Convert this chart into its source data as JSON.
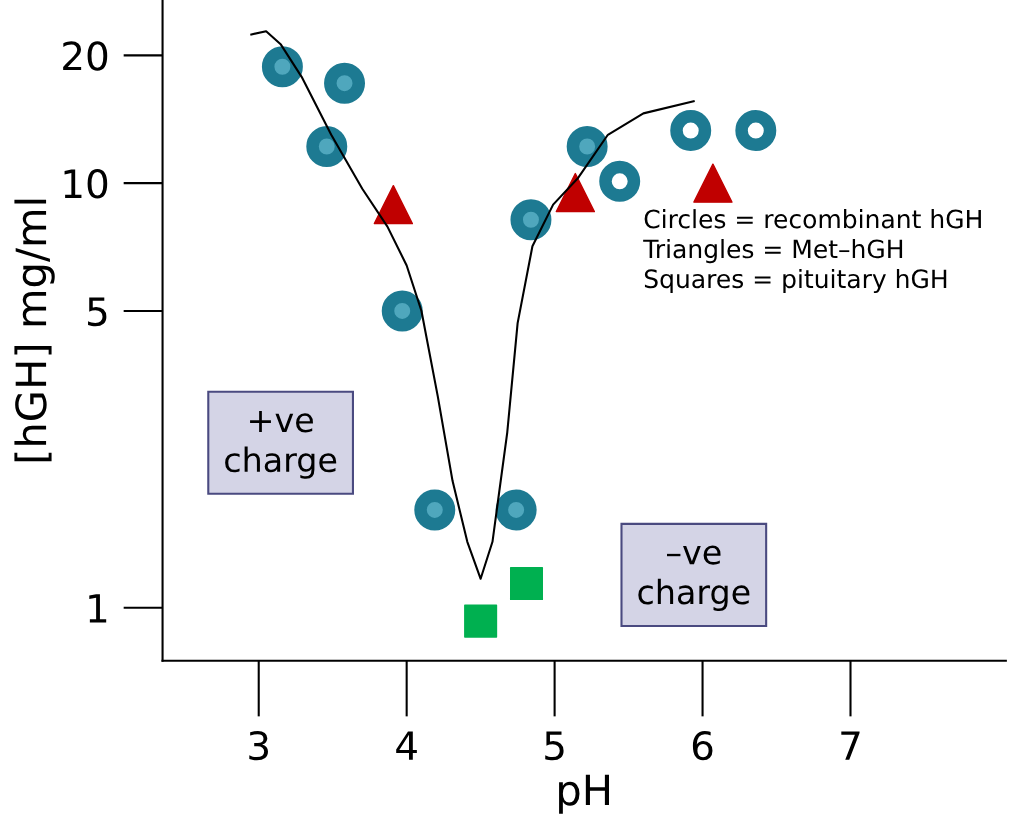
{
  "chart_data": {
    "type": "scatter",
    "xlabel": "pH",
    "ylabel": "[hGH] mg/ml",
    "log": "y",
    "xlim": [
      2.35,
      8.05
    ],
    "xticks": [
      3,
      4,
      5,
      6,
      7
    ],
    "ylim": [
      0.75,
      27
    ],
    "yticks": [
      1,
      5,
      10,
      20
    ],
    "grid": false,
    "series": [
      {
        "marker": "circle",
        "color": "#1d7a92",
        "x": [
          3.16,
          3.58,
          3.46,
          3.97,
          4.19,
          4.74,
          4.84,
          5.22
        ],
        "values": [
          18.8,
          17.2,
          12.2,
          5.0,
          1.7,
          1.7,
          8.2,
          12.2
        ]
      },
      {
        "marker": "circle",
        "color": "#1d7a92",
        "x": [
          5.44,
          5.92,
          6.36
        ],
        "values": [
          10.1,
          13.3,
          13.3
        ]
      },
      {
        "marker": "triangle",
        "color": "#c00000",
        "x": [
          3.91,
          5.14,
          6.07
        ],
        "values": [
          8.9,
          9.5,
          10.0
        ]
      },
      {
        "marker": "square",
        "color": "#00b050",
        "x": [
          4.5,
          4.81
        ],
        "values": [
          0.93,
          1.14
        ]
      },
      {
        "type": "line",
        "marker": "none",
        "color": "#000000",
        "x": [
          2.95,
          3.05,
          3.15,
          3.29,
          3.49,
          3.7,
          3.87,
          4.0,
          4.1,
          4.21,
          4.31,
          4.41,
          4.5,
          4.58,
          4.68,
          4.75,
          4.85,
          4.99,
          5.16,
          5.36,
          5.6,
          5.94
        ],
        "values": [
          22.4,
          22.8,
          21.2,
          17.8,
          13.0,
          9.7,
          7.9,
          6.4,
          5.0,
          3.15,
          1.99,
          1.43,
          1.17,
          1.43,
          2.59,
          4.68,
          7.1,
          8.9,
          10.3,
          13.0,
          14.6,
          15.6
        ]
      }
    ],
    "annotations": [
      "Circles = recombinant hGH\nTriangles = Met–hGH\nSquares = pituitary hGH",
      "+ve\ncharge",
      "–ve\ncharge"
    ]
  }
}
